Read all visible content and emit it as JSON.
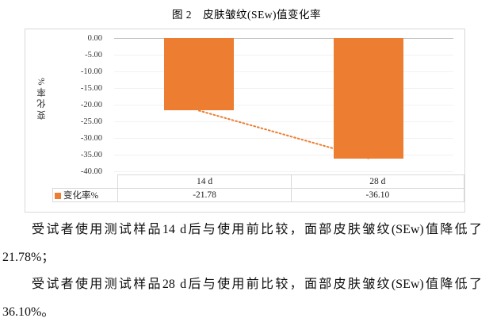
{
  "chart_data": {
    "type": "bar",
    "title": "图 2　皮肤皱纹(SEw)值变化率",
    "categories": [
      "14 d",
      "28 d"
    ],
    "series": [
      {
        "name": "变化率%",
        "values": [
          -21.78,
          -36.1
        ]
      }
    ],
    "ylabel": "变化率%",
    "ylim": [
      -40,
      0
    ],
    "ytick_labels": [
      "0.00",
      "-5.00",
      "-10.00",
      "-15.00",
      "-20.00",
      "-25.00",
      "-30.00",
      "-35.00",
      "-40.00"
    ],
    "grid": true,
    "bar_color": "#ED7D31",
    "trendline": {
      "style": "dotted",
      "color": "#ED7D31",
      "values": [
        -21.78,
        -36.1
      ]
    },
    "legend_position": "data-table-left",
    "data_table": {
      "row_label": "变化率%",
      "cell_values": [
        "-21.78",
        "-36.10"
      ]
    }
  },
  "paragraphs": [
    {
      "lines": [
        "受试者使用测试样品14 d后与使用前比较，面部皮肤皱纹(SEw)值降低了",
        "21.78%；"
      ]
    },
    {
      "lines": [
        "受试者使用测试样品28 d后与使用前比较，面部皮肤皱纹(SEw)值降低了",
        "36.10%。"
      ]
    }
  ],
  "colors": {
    "bar": "#ED7D31",
    "chart_border": "#D9D9D9",
    "zero_line": "#C4C4C4",
    "gridline": "#F2F2F2"
  }
}
